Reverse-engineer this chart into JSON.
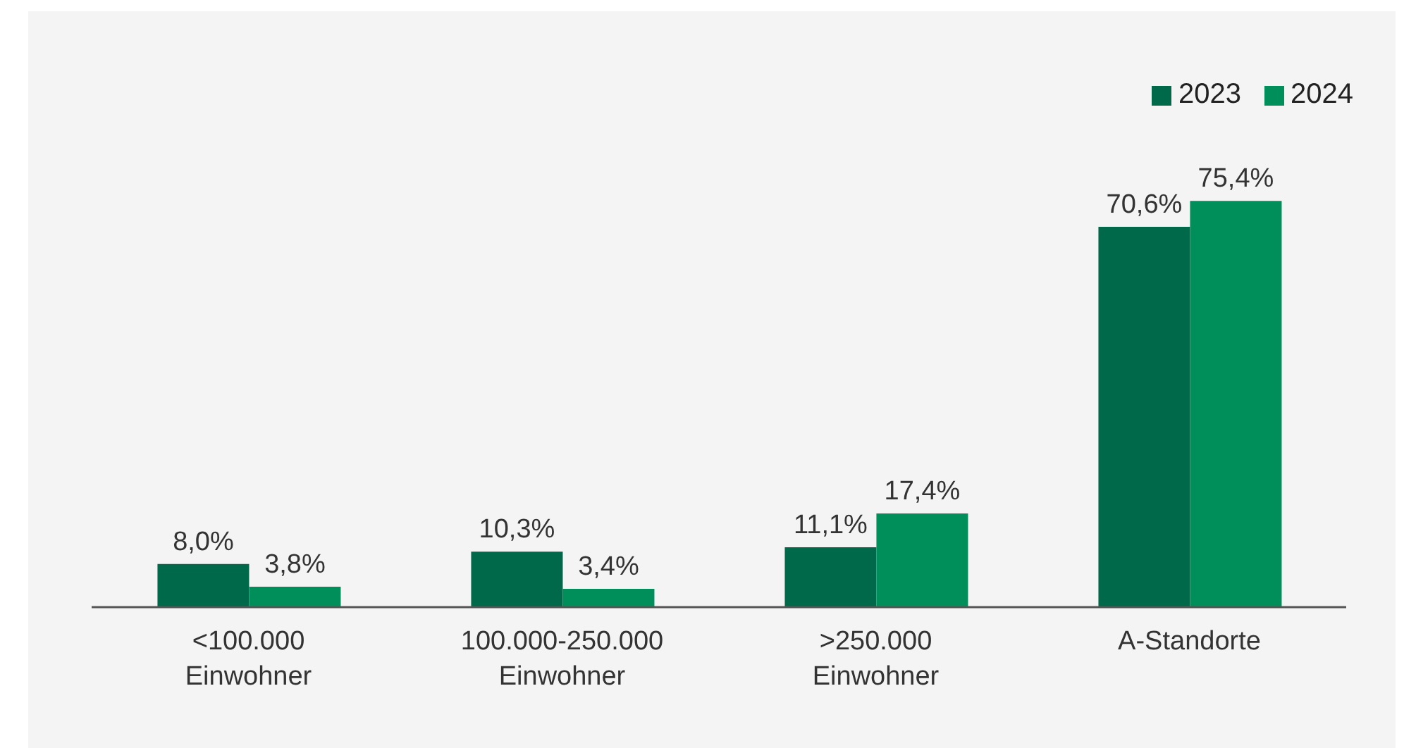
{
  "chart_data": {
    "type": "bar",
    "categories": [
      "<100.000 Einwohner",
      "100.000-250.000 Einwohner",
      ">250.000 Einwohner",
      "A-Standorte"
    ],
    "series": [
      {
        "name": "2023",
        "color": "#00694a",
        "values": [
          8.0,
          10.3,
          11.1,
          70.6
        ],
        "value_labels": [
          "8,0%",
          "10,3%",
          "11,1%",
          "70,6%"
        ]
      },
      {
        "name": "2024",
        "color": "#008f5a",
        "values": [
          3.8,
          3.4,
          17.4,
          75.4
        ],
        "value_labels": [
          "3,8%",
          "3,4%",
          "17,4%",
          "75,4%"
        ]
      }
    ],
    "legend": "top right"
  }
}
